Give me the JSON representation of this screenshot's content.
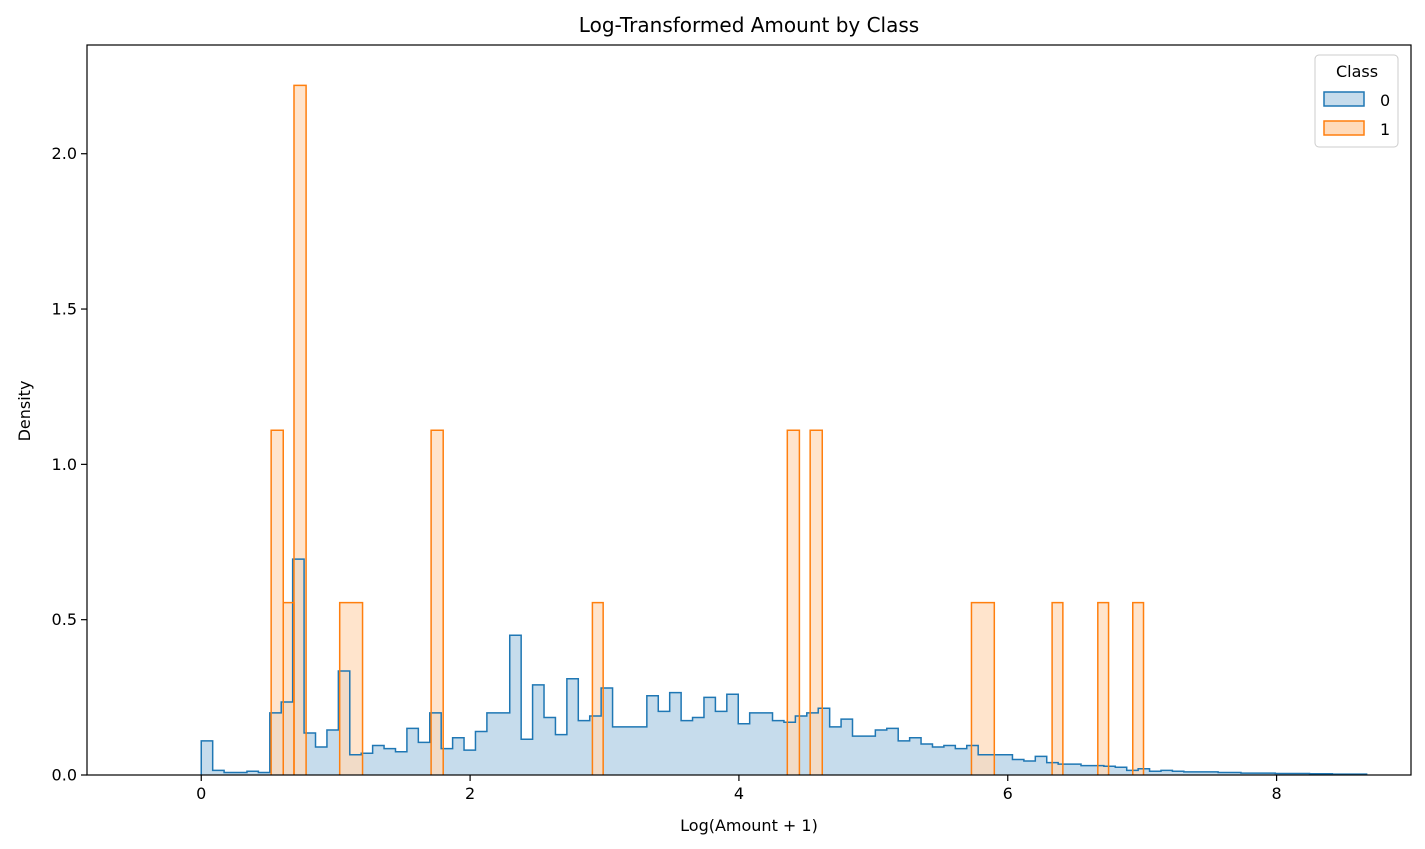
{
  "chart_data": {
    "type": "histogram",
    "title": "Log-Transformed Amount by Class",
    "xlabel": "Log(Amount + 1)",
    "ylabel": "Density",
    "xlim": [
      -0.85,
      9.0
    ],
    "ylim": [
      0,
      2.35
    ],
    "x_ticks": [
      0,
      2,
      4,
      6,
      8
    ],
    "x_tick_labels": [
      "0",
      "2",
      "4",
      "6",
      "8"
    ],
    "y_ticks": [
      0.0,
      0.5,
      1.0,
      1.5,
      2.0
    ],
    "y_tick_labels": [
      "0.0",
      "0.5",
      "1.0",
      "1.5",
      "2.0"
    ],
    "grid": false,
    "legend": {
      "title": "Class",
      "placement": "top-right"
    },
    "series": [
      {
        "name": "0",
        "color": "#1f77b4",
        "fill": "#c6dcec",
        "bin_start": 0.0,
        "bin_width": 0.085,
        "values": [
          0.11,
          0.015,
          0.008,
          0.008,
          0.012,
          0.008,
          0.2,
          0.235,
          0.695,
          0.135,
          0.09,
          0.145,
          0.335,
          0.065,
          0.07,
          0.095,
          0.085,
          0.075,
          0.15,
          0.105,
          0.2,
          0.085,
          0.12,
          0.08,
          0.14,
          0.2,
          0.2,
          0.45,
          0.115,
          0.29,
          0.185,
          0.13,
          0.31,
          0.175,
          0.19,
          0.28,
          0.155,
          0.155,
          0.155,
          0.255,
          0.205,
          0.265,
          0.175,
          0.185,
          0.25,
          0.205,
          0.26,
          0.165,
          0.2,
          0.2,
          0.175,
          0.17,
          0.19,
          0.2,
          0.215,
          0.155,
          0.18,
          0.125,
          0.125,
          0.145,
          0.15,
          0.11,
          0.12,
          0.1,
          0.09,
          0.095,
          0.085,
          0.095,
          0.065,
          0.065,
          0.065,
          0.05,
          0.045,
          0.06,
          0.04,
          0.035,
          0.035,
          0.03,
          0.03,
          0.028,
          0.025,
          0.015,
          0.02,
          0.012,
          0.015,
          0.012,
          0.01,
          0.01,
          0.01,
          0.008,
          0.008,
          0.006,
          0.006,
          0.006,
          0.005,
          0.005,
          0.005,
          0.004,
          0.004,
          0.003,
          0.003,
          0.003
        ]
      },
      {
        "name": "1",
        "color": "#ff7f0e",
        "fill": "#ffdbbb",
        "bins": [
          {
            "x0": 0.52,
            "x1": 0.61,
            "y": 1.11
          },
          {
            "x0": 0.61,
            "x1": 0.69,
            "y": 0.555
          },
          {
            "x0": 0.69,
            "x1": 0.78,
            "y": 2.22
          },
          {
            "x0": 1.03,
            "x1": 1.2,
            "y": 0.555
          },
          {
            "x0": 1.71,
            "x1": 1.8,
            "y": 1.11
          },
          {
            "x0": 2.91,
            "x1": 2.99,
            "y": 0.555
          },
          {
            "x0": 4.36,
            "x1": 4.45,
            "y": 1.11
          },
          {
            "x0": 4.53,
            "x1": 4.62,
            "y": 1.11
          },
          {
            "x0": 5.73,
            "x1": 5.9,
            "y": 0.555
          },
          {
            "x0": 6.33,
            "x1": 6.41,
            "y": 0.555
          },
          {
            "x0": 6.67,
            "x1": 6.75,
            "y": 0.555
          },
          {
            "x0": 6.93,
            "x1": 7.01,
            "y": 0.555
          }
        ]
      }
    ]
  }
}
